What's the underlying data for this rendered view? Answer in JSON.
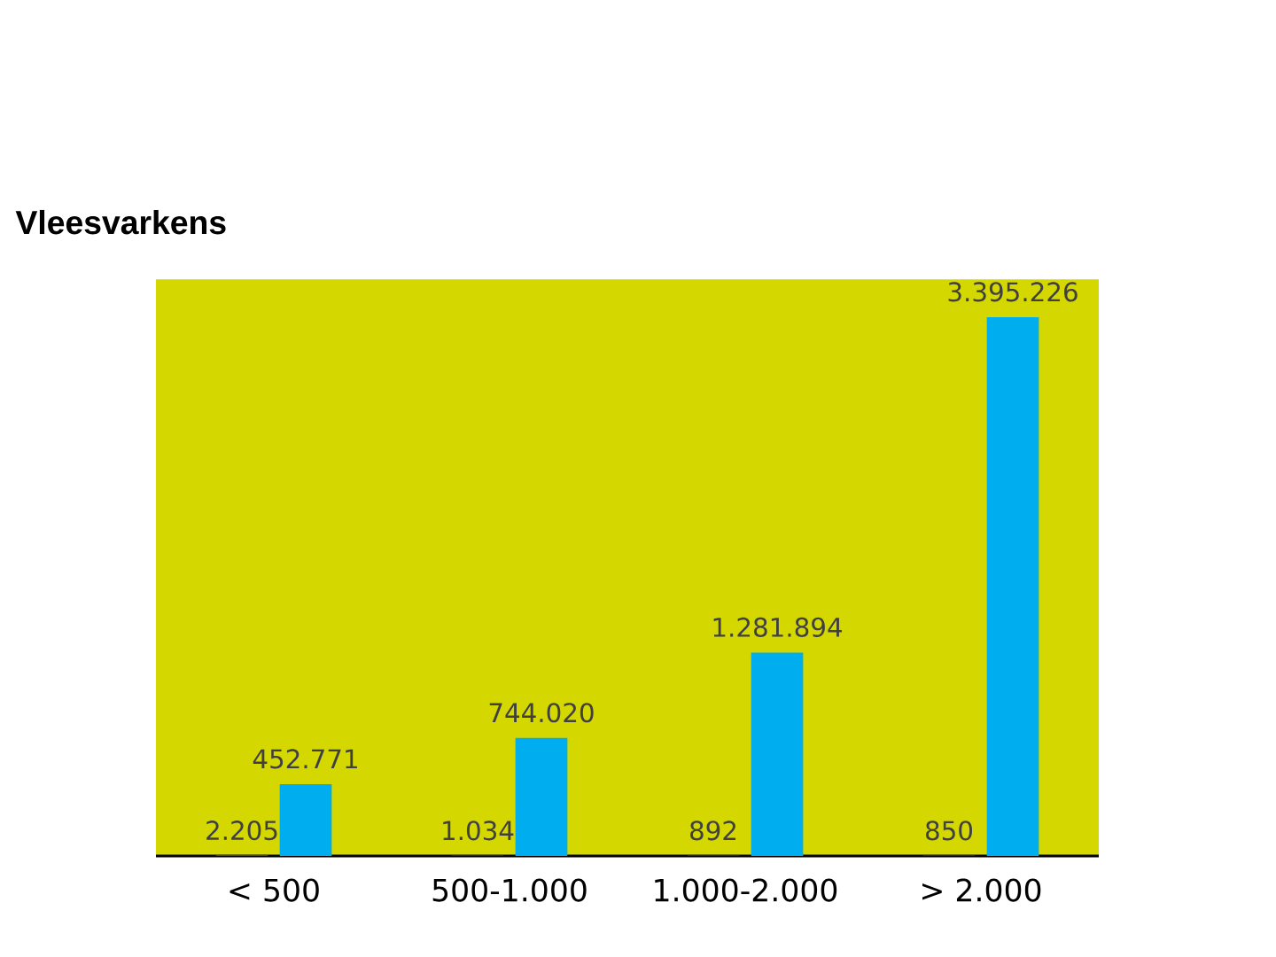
{
  "chart_data": {
    "type": "bar",
    "title": "Vleesvarkens",
    "categories": [
      "< 500",
      "500-1.000",
      "1.000-2.000",
      "> 2.000"
    ],
    "series": [
      {
        "color": "#00aeef",
        "values": [
          2205,
          1034,
          892,
          850
        ],
        "value_labels": [
          "2.205",
          "1.034",
          "892",
          "850"
        ]
      },
      {
        "color": "#00aeef",
        "values": [
          452771,
          744020,
          1281894,
          3395226
        ],
        "value_labels": [
          "452.771",
          "744.020",
          "1.281.894",
          "3.395.226"
        ]
      }
    ]
  }
}
